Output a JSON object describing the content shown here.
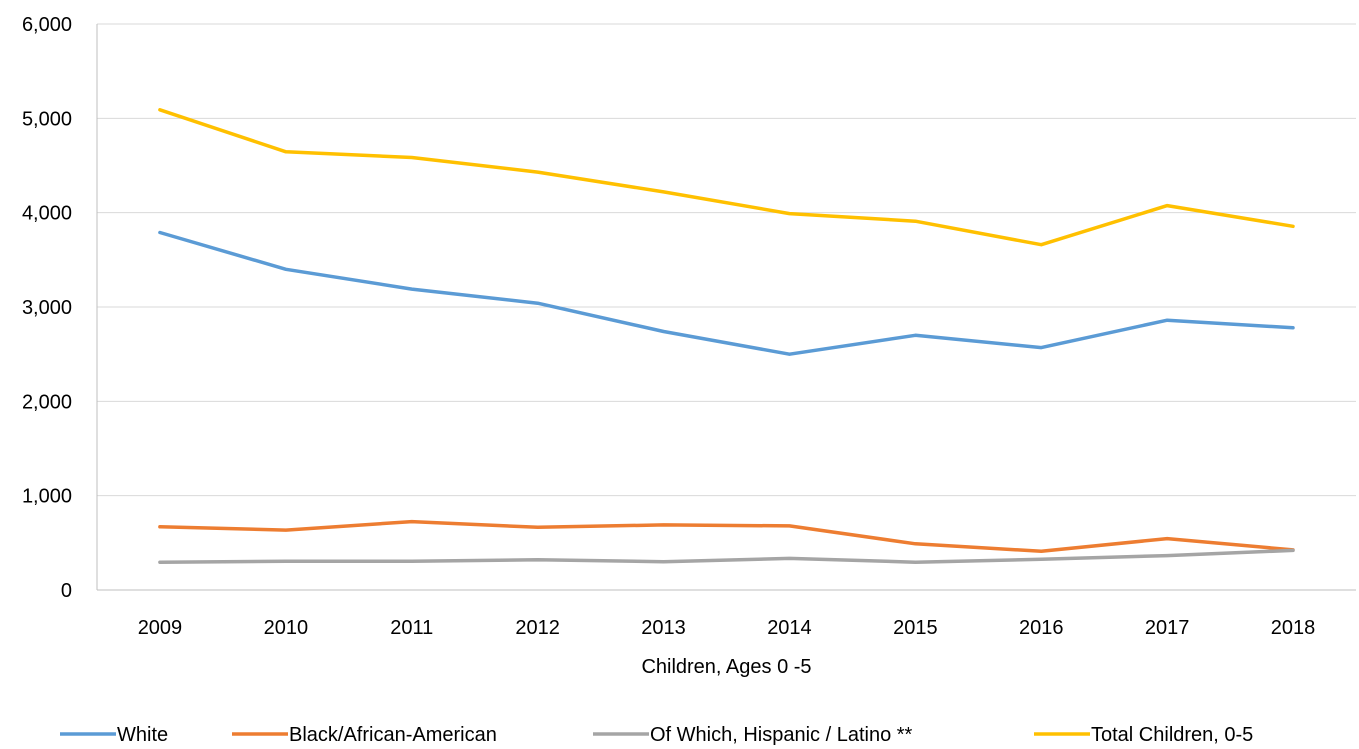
{
  "chart_data": {
    "type": "line",
    "title": "",
    "xlabel": "Children, Ages 0 -5",
    "ylabel": "",
    "categories": [
      "2009",
      "2010",
      "2011",
      "2012",
      "2013",
      "2014",
      "2015",
      "2016",
      "2017",
      "2018"
    ],
    "y_ticks": [
      "0",
      "1,000",
      "2,000",
      "3,000",
      "4,000",
      "5,000",
      "6,000"
    ],
    "ylim": [
      0,
      6000
    ],
    "grid": "horizontal",
    "legend_position": "bottom",
    "series": [
      {
        "name": "White",
        "color": "#5b9bd5",
        "values": [
          3790,
          3400,
          3190,
          3040,
          2740,
          2500,
          2700,
          2570,
          2860,
          2780
        ]
      },
      {
        "name": "Black/African-American",
        "color": "#ed7d31",
        "values": [
          670,
          635,
          725,
          665,
          690,
          680,
          490,
          410,
          545,
          425
        ]
      },
      {
        "name": "Of Which, Hispanic / Latino **",
        "color": "#a5a5a5",
        "values": [
          295,
          305,
          305,
          320,
          300,
          335,
          295,
          325,
          365,
          420
        ]
      },
      {
        "name": "Total Children, 0-5",
        "color": "#ffc000",
        "values": [
          5090,
          4645,
          4585,
          4430,
          4220,
          3990,
          3910,
          3660,
          4075,
          3855
        ]
      }
    ]
  }
}
